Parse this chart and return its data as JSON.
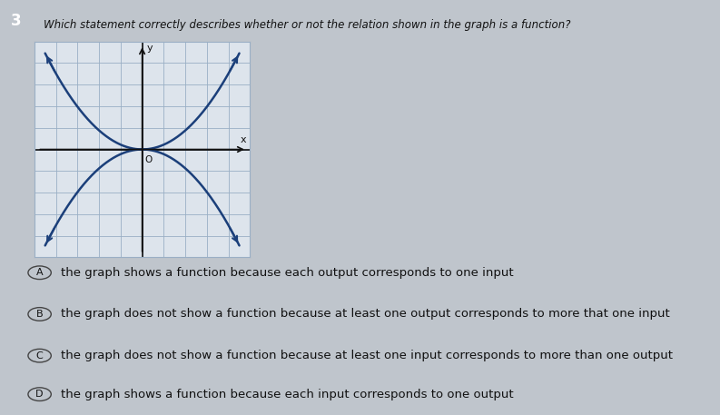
{
  "title": "Which statement correctly describes whether or not the relation shown in the graph is a function?",
  "question_number": "3",
  "graph_bg": "#dde4ec",
  "grid_color": "#9aafc5",
  "curve_color": "#1b3f7a",
  "axis_color": "#111111",
  "curve_linewidth": 1.8,
  "choices": [
    {
      "label": "A",
      "text": "the graph shows a function because each output corresponds to one input"
    },
    {
      "label": "B",
      "text": "the graph does not show a function because at least one output corresponds to more that one input"
    },
    {
      "label": "C",
      "text": "the graph does not show a function because at least one input corresponds to more than one output"
    },
    {
      "label": "D",
      "text": "the graph shows a function because each input corresponds to one output"
    }
  ],
  "bold_parts": [
    "",
    "more that one input",
    "more than one output",
    "one output"
  ],
  "bg_color": "#bfc5cc",
  "text_color": "#111111",
  "title_fontsize": 8.5,
  "choice_fontsize": 9.5,
  "num_box_color": "#2a2a2a"
}
